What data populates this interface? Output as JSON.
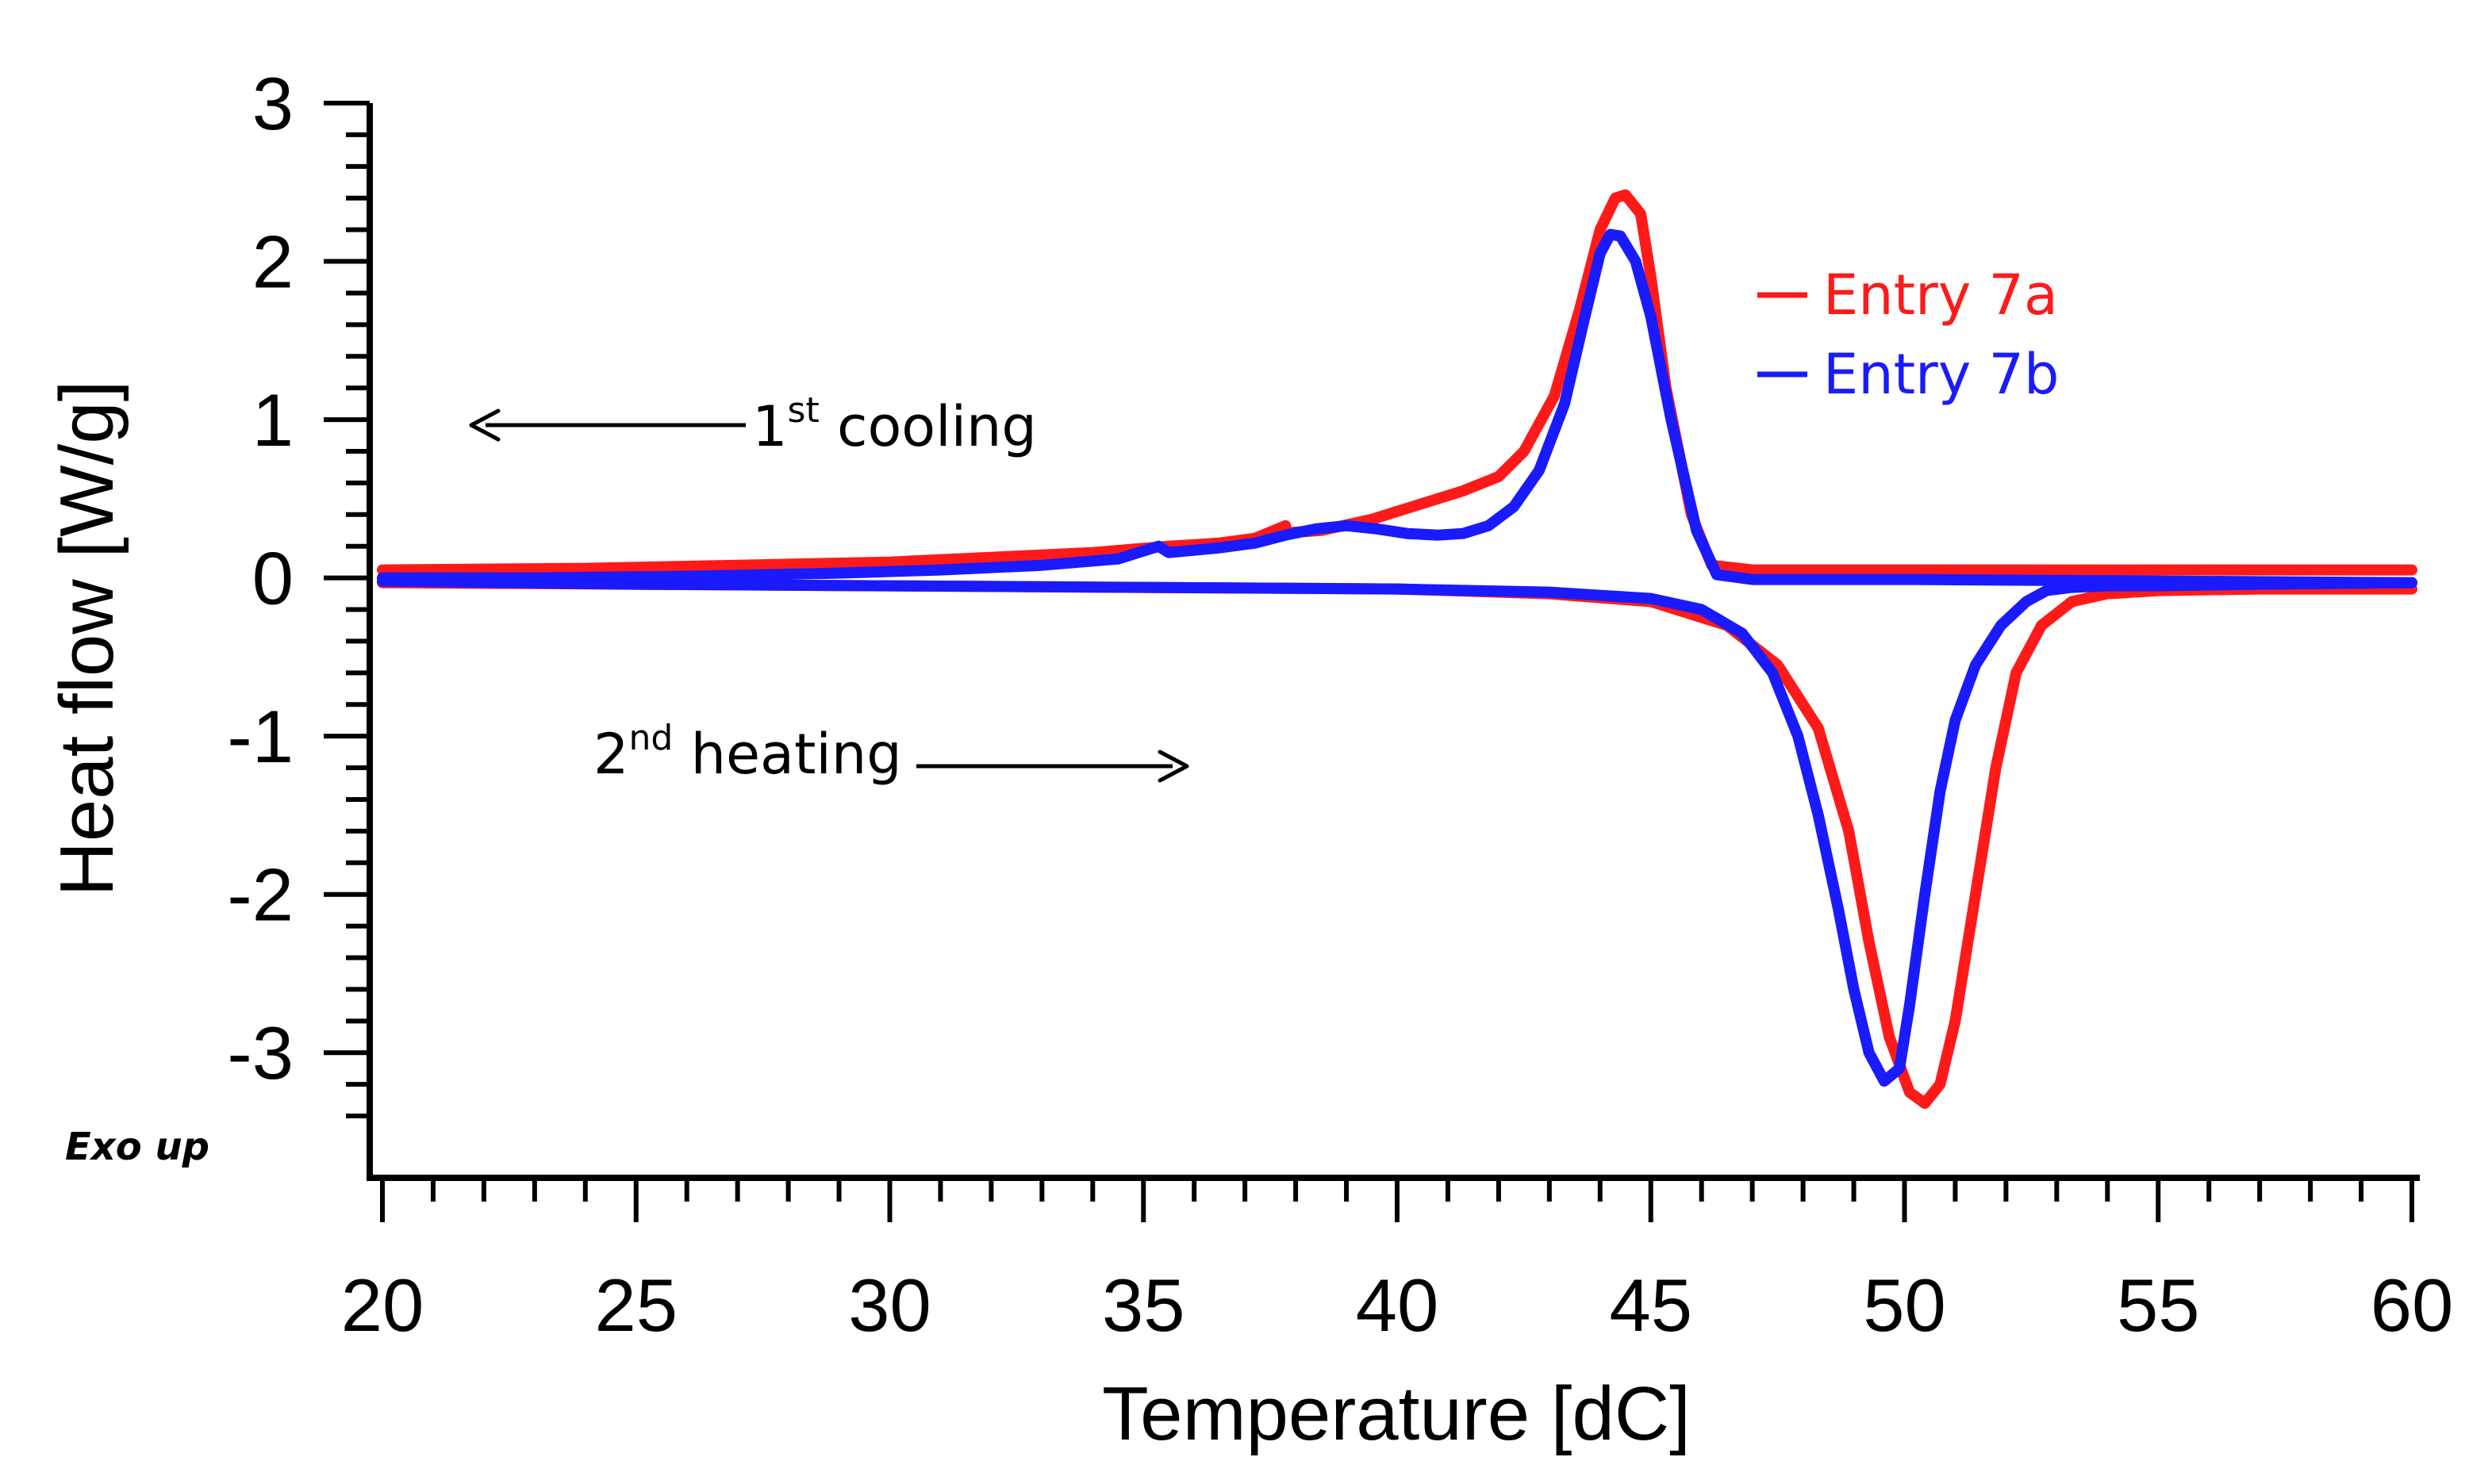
{
  "chart_data": {
    "type": "line",
    "title": "",
    "xlabel": "Temperature [dC]",
    "ylabel": "Heat flow [W/g]",
    "xlim": [
      20,
      60
    ],
    "ylim": [
      -3.5,
      3
    ],
    "xticks": [
      20,
      25,
      30,
      35,
      40,
      45,
      50,
      55,
      60
    ],
    "yticks": [
      3,
      2,
      1,
      0,
      -1,
      -2,
      -3
    ],
    "xtick_labels": [
      "20",
      "25",
      "30",
      "35",
      "40",
      "45",
      "50",
      "55",
      "60"
    ],
    "ytick_labels": [
      "3",
      "2",
      "1",
      "0",
      "-1",
      "-2",
      "-3"
    ],
    "grid": false,
    "legend_position": "top-right",
    "series": [
      {
        "name": "Entry 7a",
        "color": "#ff1a1a",
        "segments": [
          {
            "label": "1st cooling",
            "x": [
              60,
              55,
              50,
              47,
              46.2,
              45.8,
              45.3,
              45,
              44.8,
              44.5,
              44.3,
              44,
              43.6,
              43.1,
              42.5,
              42,
              41.3,
              40.5,
              39.5,
              38.5,
              37.6,
              37.8,
              37.2,
              36.5,
              35.5,
              34,
              32,
              30,
              27,
              24,
              20
            ],
            "y": [
              0.05,
              0.05,
              0.05,
              0.05,
              0.08,
              0.4,
              1.2,
              1.9,
              2.3,
              2.42,
              2.4,
              2.2,
              1.7,
              1.15,
              0.8,
              0.64,
              0.55,
              0.47,
              0.37,
              0.3,
              0.28,
              0.33,
              0.25,
              0.22,
              0.2,
              0.16,
              0.13,
              0.1,
              0.08,
              0.06,
              0.05
            ]
          },
          {
            "label": "2nd heating",
            "x": [
              20,
              25,
              30,
              35,
              40,
              43,
              45,
              46.5,
              47.5,
              48.3,
              48.9,
              49.3,
              49.7,
              50.1,
              50.4,
              50.7,
              51,
              51.4,
              51.8,
              52.2,
              52.7,
              53.3,
              54,
              55,
              57,
              60
            ],
            "y": [
              -0.03,
              -0.04,
              -0.05,
              -0.06,
              -0.07,
              -0.1,
              -0.15,
              -0.3,
              -0.55,
              -0.95,
              -1.6,
              -2.3,
              -2.9,
              -3.25,
              -3.32,
              -3.2,
              -2.8,
              -2.0,
              -1.2,
              -0.6,
              -0.3,
              -0.15,
              -0.1,
              -0.08,
              -0.07,
              -0.07
            ]
          }
        ]
      },
      {
        "name": "Entry 7b",
        "color": "#1a1aff",
        "segments": [
          {
            "label": "1st cooling",
            "x": [
              60,
              55,
              50,
              47,
              46.3,
              45.9,
              45.4,
              45,
              44.7,
              44.4,
              44.2,
              44,
              43.7,
              43.3,
              42.8,
              42.3,
              41.8,
              41.3,
              40.8,
              40.2,
              39.6,
              39,
              38.4,
              37.8,
              37.2,
              36.5,
              35.5,
              35.3,
              34.5,
              33,
              31,
              29,
              26,
              23,
              20
            ],
            "y": [
              -0.03,
              -0.02,
              -0.01,
              -0.01,
              0.02,
              0.3,
              1.0,
              1.65,
              2.0,
              2.16,
              2.17,
              2.05,
              1.65,
              1.1,
              0.68,
              0.45,
              0.33,
              0.28,
              0.27,
              0.28,
              0.31,
              0.33,
              0.31,
              0.27,
              0.22,
              0.19,
              0.16,
              0.2,
              0.12,
              0.08,
              0.05,
              0.03,
              0.01,
              0.0,
              0.0
            ]
          },
          {
            "label": "2nd heating",
            "x": [
              20,
              25,
              30,
              35,
              40,
              43,
              45,
              46,
              46.8,
              47.4,
              47.9,
              48.3,
              48.7,
              49,
              49.3,
              49.6,
              49.9,
              50.1,
              50.4,
              50.7,
              51,
              51.4,
              51.9,
              52.4,
              52.8,
              53.3,
              54,
              55,
              57,
              60
            ],
            "y": [
              -0.02,
              -0.04,
              -0.05,
              -0.06,
              -0.07,
              -0.09,
              -0.13,
              -0.2,
              -0.35,
              -0.6,
              -1.0,
              -1.5,
              -2.1,
              -2.6,
              -3.0,
              -3.18,
              -3.1,
              -2.7,
              -2.0,
              -1.35,
              -0.9,
              -0.55,
              -0.3,
              -0.15,
              -0.08,
              -0.06,
              -0.05,
              -0.05,
              -0.04,
              -0.03
            ]
          }
        ]
      }
    ],
    "annotations": {
      "cooling": {
        "base": "1",
        "sup": "st",
        "text": " cooling"
      },
      "heating": {
        "base": "2",
        "sup": "nd",
        "text": " heating"
      },
      "exo": "Exo up"
    }
  }
}
